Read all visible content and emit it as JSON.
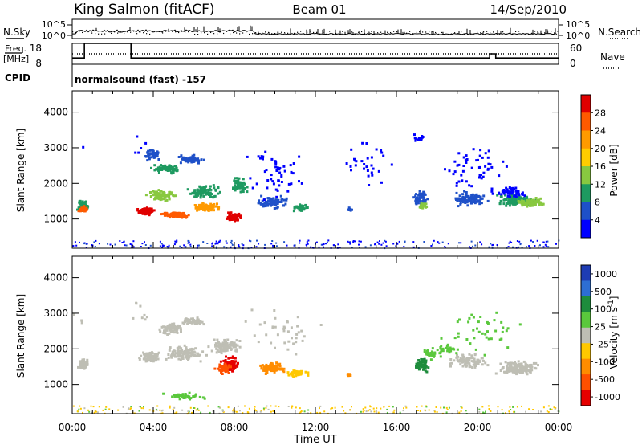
{
  "header": {
    "station": "King Salmon (fitACF)",
    "beam": "Beam 01",
    "date": "14/Sep/2010"
  },
  "params": {
    "nsky_label": "N.Sky",
    "nsky_ticks": [
      "10^5",
      "10^0"
    ],
    "nsearch_label": "N.Search",
    "freq_label": "Freq.",
    "freq_unit": "[MHz]",
    "freq_ticks": [
      "18",
      "8"
    ],
    "nave_ticks": [
      "60",
      "0"
    ],
    "nave_label": "Nave",
    "cpid_label": "CPID",
    "cpid_text": "normalsound (fast) -157"
  },
  "chart_data": [
    {
      "type": "line",
      "name": "noise-and-parameters",
      "x_ticks": [
        "00:00",
        "04:00",
        "08:00",
        "12:00",
        "16:00",
        "20:00",
        "00:00"
      ],
      "freq_segments": [
        {
          "t": [
            0.0,
            0.6
          ],
          "freq_mhz": 11
        },
        {
          "t": [
            0.6,
            2.9
          ],
          "freq_mhz": 18
        },
        {
          "t": [
            2.9,
            20.6
          ],
          "freq_mhz": 11
        },
        {
          "t": [
            20.6,
            20.9
          ],
          "freq_mhz": 13
        },
        {
          "t": [
            20.9,
            24.0
          ],
          "freq_mhz": 11
        }
      ]
    },
    {
      "type": "heatmap",
      "name": "power",
      "ylabel": "Slant Range [km]",
      "xlabel": "",
      "x_ticks": [
        "00:00",
        "04:00",
        "08:00",
        "12:00",
        "16:00",
        "20:00",
        "00:00"
      ],
      "y_ticks": [
        "1000",
        "2000",
        "3000",
        "4000"
      ],
      "ylim": [
        180,
        4600
      ],
      "xlim_hours": [
        0,
        24
      ],
      "colorbar_label": "Power [dB]",
      "colorbar_ticks": [
        "28",
        "24",
        "20",
        "16",
        "12",
        "8",
        "4"
      ],
      "colors": [
        "#e00000",
        "#ff5a00",
        "#ff9a00",
        "#ffcc00",
        "#88c840",
        "#1e9a60",
        "#1e50c8",
        "#0000ff"
      ]
    },
    {
      "type": "heatmap",
      "name": "velocity",
      "ylabel": "Slant Range [km]",
      "xlabel": "Time UT",
      "x_ticks": [
        "00:00",
        "04:00",
        "08:00",
        "12:00",
        "16:00",
        "20:00",
        "00:00"
      ],
      "y_ticks": [
        "1000",
        "2000",
        "3000",
        "4000"
      ],
      "ylim": [
        180,
        4600
      ],
      "xlim_hours": [
        0,
        24
      ],
      "colorbar_label": "Velocity [m s^-1]",
      "colorbar_ticks": [
        "1000",
        "500",
        "100",
        "25",
        "-25",
        "-100",
        "-500",
        "-1000"
      ],
      "colors": [
        "#1e3cb4",
        "#2d6ed2",
        "#1e8c3c",
        "#5ac83c",
        "#bebeb4",
        "#ffc800",
        "#ff8c00",
        "#ff5000",
        "#e60000"
      ]
    }
  ]
}
